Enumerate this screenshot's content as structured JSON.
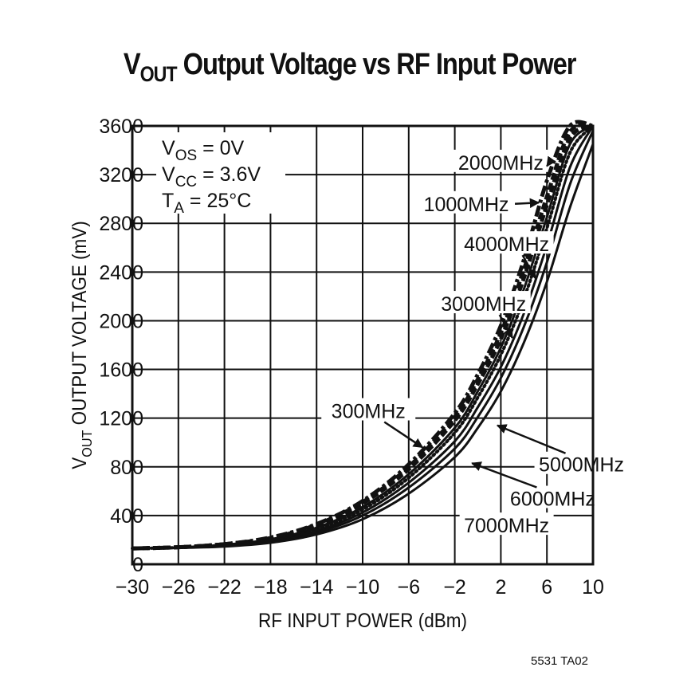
{
  "title": {
    "main": "V",
    "subscript": "OUT",
    "rest": " Output Voltage vs RF Input Power"
  },
  "conditions": [
    {
      "symbol": "V",
      "sub": "OS",
      "value": " = 0V"
    },
    {
      "symbol": "V",
      "sub": "CC",
      "value": " = 3.6V"
    },
    {
      "symbol": "T",
      "sub": "A",
      "value": " = 25°C"
    }
  ],
  "footer": "5531 TA02",
  "chart_data": {
    "type": "line",
    "title": "VOUT Output Voltage vs RF Input Power",
    "xlabel": "RF INPUT POWER (dBm)",
    "ylabel": "VOUT OUTPUT VOLTAGE (mV)",
    "ylabel_parts": {
      "main": "V",
      "sub": "OUT",
      "rest": " OUTPUT VOLTAGE (mV)"
    },
    "xlim": [
      -30,
      10
    ],
    "ylim": [
      0,
      3600
    ],
    "x_ticks": [
      -30,
      -26,
      -22,
      -18,
      -14,
      -10,
      -6,
      -2,
      2,
      6,
      10
    ],
    "x_tick_labels": [
      "−30",
      "−26",
      "−22",
      "−18",
      "−14",
      "−10",
      "−6",
      "−2",
      "2",
      "6",
      "10"
    ],
    "y_ticks": [
      0,
      400,
      800,
      1200,
      1600,
      2000,
      2400,
      2800,
      3200,
      3600
    ],
    "y_tick_labels": [
      "0",
      "400",
      "800",
      "1200",
      "1600",
      "2000",
      "2400",
      "2800",
      "3200",
      "3600"
    ],
    "grid": true,
    "legend_position": "inline annotations with arrows",
    "annotations": [
      "VOS = 0V",
      "VCC = 3.6V",
      "TA = 25°C"
    ],
    "x": [
      -30,
      -26,
      -22,
      -18,
      -14,
      -10,
      -6,
      -2,
      0,
      2,
      4,
      6,
      8,
      10
    ],
    "series": [
      {
        "name": "300MHz",
        "style": "dashed",
        "values": [
          130,
          140,
          165,
          215,
          320,
          500,
          780,
          1180,
          1480,
          1850,
          2350,
          2950,
          3500,
          3600
        ]
      },
      {
        "name": "1000MHz",
        "style": "dashed",
        "values": [
          130,
          140,
          165,
          215,
          325,
          510,
          800,
          1210,
          1520,
          1900,
          2420,
          3020,
          3550,
          3600
        ]
      },
      {
        "name": "2000MHz",
        "style": "dash-dot",
        "values": [
          130,
          140,
          165,
          220,
          330,
          520,
          820,
          1240,
          1560,
          1960,
          2500,
          3150,
          3600,
          3600
        ]
      },
      {
        "name": "3000MHz",
        "style": "solid",
        "values": [
          130,
          138,
          160,
          205,
          300,
          470,
          740,
          1120,
          1420,
          1780,
          2260,
          2850,
          3450,
          3600
        ]
      },
      {
        "name": "4000MHz",
        "style": "dotted",
        "values": [
          130,
          137,
          157,
          200,
          290,
          450,
          710,
          1080,
          1370,
          1720,
          2180,
          2760,
          3380,
          3600
        ]
      },
      {
        "name": "5000MHz",
        "style": "solid",
        "values": [
          130,
          136,
          154,
          193,
          275,
          425,
          670,
          1010,
          1290,
          1620,
          2060,
          2620,
          3260,
          3600
        ]
      },
      {
        "name": "6000MHz",
        "style": "solid",
        "values": [
          130,
          135,
          150,
          185,
          260,
          400,
          630,
          950,
          1210,
          1530,
          1950,
          2480,
          3120,
          3560
        ]
      },
      {
        "name": "7000MHz",
        "style": "solid",
        "values": [
          130,
          134,
          146,
          177,
          245,
          370,
          580,
          880,
          1120,
          1420,
          1820,
          2320,
          2930,
          3450
        ]
      }
    ],
    "series_labels": [
      {
        "name": "2000MHz",
        "label_x": 2.0,
        "label_y": 3300,
        "arrow_to_x": 6.0,
        "arrow_to_y": 3270
      },
      {
        "name": "1000MHz",
        "label_x": -1.0,
        "label_y": 2960,
        "arrow_to_x": 5.3,
        "arrow_to_y": 2970
      },
      {
        "name": "4000MHz",
        "label_x": 2.5,
        "label_y": 2630,
        "arrow_to_x": 5.0,
        "arrow_to_y": 2350
      },
      {
        "name": "3000MHz",
        "label_x": 0.5,
        "label_y": 2140,
        "arrow_to_x": 3.0,
        "arrow_to_y": 1860
      },
      {
        "name": "300MHz",
        "label_x": -9.5,
        "label_y": 1260,
        "arrow_to_x": -4.8,
        "arrow_to_y": 960
      },
      {
        "name": "5000MHz",
        "label_x": 9.0,
        "label_y": 820,
        "arrow_to_x": 1.7,
        "arrow_to_y": 1140
      },
      {
        "name": "6000MHz",
        "label_x": 6.5,
        "label_y": 540,
        "arrow_to_x": -0.5,
        "arrow_to_y": 830
      },
      {
        "name": "7000MHz",
        "label_x": 2.5,
        "label_y": 320,
        "arrow_to_x": null,
        "arrow_to_y": null
      }
    ]
  }
}
